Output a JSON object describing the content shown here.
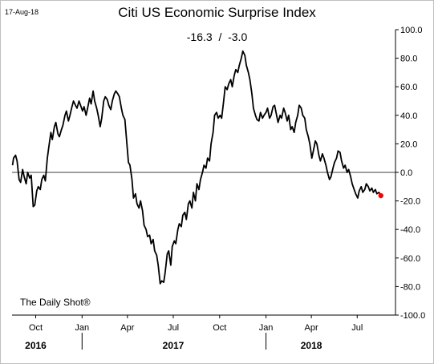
{
  "date_label": "17-Aug-18",
  "title": "Citi US Economic Surprise Index",
  "subtitle": "-16.3  /  -3.0",
  "credit": "The Daily Shot®",
  "chart_data": {
    "type": "line",
    "title": "Citi US Economic Surprise Index",
    "ylim": [
      -100,
      100
    ],
    "y_ticks": [
      "100.0",
      "80.0",
      "60.0",
      "40.0",
      "20.0",
      "0.0",
      "-20.0",
      "-40.0",
      "-60.0",
      "-80.0",
      "-100.0"
    ],
    "y_tick_values": [
      100,
      80,
      60,
      40,
      20,
      0,
      -20,
      -40,
      -60,
      -80,
      -100
    ],
    "x_ticks": [
      {
        "label": "Oct",
        "date": "2016-10-01"
      },
      {
        "label": "Jan",
        "date": "2017-01-01"
      },
      {
        "label": "Apr",
        "date": "2017-04-01"
      },
      {
        "label": "Jul",
        "date": "2017-07-01"
      },
      {
        "label": "Oct",
        "date": "2017-10-01"
      },
      {
        "label": "Jan",
        "date": "2018-01-01"
      },
      {
        "label": "Apr",
        "date": "2018-04-01"
      },
      {
        "label": "Jul",
        "date": "2018-07-01"
      }
    ],
    "year_labels": [
      {
        "label": "2016",
        "date": "2016-10-01"
      },
      {
        "label": "2017",
        "date": "2017-07-01"
      },
      {
        "label": "2018",
        "date": "2018-04-01"
      }
    ],
    "xlim": [
      "2016-08-15",
      "2018-09-15"
    ],
    "zero_line": true,
    "grid": false,
    "line_color": "#000000",
    "last_point_color": "#ff0000",
    "last_point": {
      "date": "2018-08-17",
      "value": -16.3
    },
    "series": [
      {
        "values": [
          [
            "2016-08-16",
            5
          ],
          [
            "2016-08-18",
            10
          ],
          [
            "2016-08-22",
            12
          ],
          [
            "2016-08-25",
            8
          ],
          [
            "2016-08-29",
            -5
          ],
          [
            "2016-09-01",
            -7
          ],
          [
            "2016-09-05",
            2
          ],
          [
            "2016-09-08",
            -3
          ],
          [
            "2016-09-12",
            -8
          ],
          [
            "2016-09-15",
            0
          ],
          [
            "2016-09-19",
            -4
          ],
          [
            "2016-09-22",
            -2
          ],
          [
            "2016-09-26",
            -24
          ],
          [
            "2016-09-29",
            -23
          ],
          [
            "2016-10-03",
            -13
          ],
          [
            "2016-10-06",
            -10
          ],
          [
            "2016-10-10",
            -12
          ],
          [
            "2016-10-13",
            -5
          ],
          [
            "2016-10-17",
            -2
          ],
          [
            "2016-10-20",
            -6
          ],
          [
            "2016-10-24",
            10
          ],
          [
            "2016-10-27",
            18
          ],
          [
            "2016-10-31",
            28
          ],
          [
            "2016-11-03",
            23
          ],
          [
            "2016-11-07",
            32
          ],
          [
            "2016-11-10",
            35
          ],
          [
            "2016-11-14",
            27
          ],
          [
            "2016-11-17",
            25
          ],
          [
            "2016-11-21",
            30
          ],
          [
            "2016-11-24",
            33
          ],
          [
            "2016-11-28",
            40
          ],
          [
            "2016-12-01",
            43
          ],
          [
            "2016-12-05",
            36
          ],
          [
            "2016-12-08",
            40
          ],
          [
            "2016-12-12",
            46
          ],
          [
            "2016-12-15",
            50
          ],
          [
            "2016-12-19",
            47
          ],
          [
            "2016-12-22",
            45
          ],
          [
            "2016-12-26",
            50
          ],
          [
            "2016-12-29",
            47
          ],
          [
            "2017-01-02",
            43
          ],
          [
            "2017-01-05",
            46
          ],
          [
            "2017-01-09",
            40
          ],
          [
            "2017-01-12",
            45
          ],
          [
            "2017-01-16",
            52
          ],
          [
            "2017-01-19",
            48
          ],
          [
            "2017-01-23",
            57
          ],
          [
            "2017-01-26",
            50
          ],
          [
            "2017-01-30",
            45
          ],
          [
            "2017-02-02",
            40
          ],
          [
            "2017-02-06",
            32
          ],
          [
            "2017-02-09",
            38
          ],
          [
            "2017-02-13",
            50
          ],
          [
            "2017-02-16",
            53
          ],
          [
            "2017-02-20",
            51
          ],
          [
            "2017-02-23",
            47
          ],
          [
            "2017-02-27",
            44
          ],
          [
            "2017-03-02",
            50
          ],
          [
            "2017-03-06",
            55
          ],
          [
            "2017-03-09",
            57
          ],
          [
            "2017-03-13",
            55
          ],
          [
            "2017-03-16",
            53
          ],
          [
            "2017-03-20",
            45
          ],
          [
            "2017-03-23",
            40
          ],
          [
            "2017-03-27",
            37
          ],
          [
            "2017-03-30",
            24
          ],
          [
            "2017-04-03",
            7
          ],
          [
            "2017-04-06",
            5
          ],
          [
            "2017-04-10",
            -5
          ],
          [
            "2017-04-13",
            -18
          ],
          [
            "2017-04-17",
            -15
          ],
          [
            "2017-04-20",
            -22
          ],
          [
            "2017-04-24",
            -25
          ],
          [
            "2017-04-27",
            -20
          ],
          [
            "2017-05-01",
            -27
          ],
          [
            "2017-05-04",
            -37
          ],
          [
            "2017-05-08",
            -40
          ],
          [
            "2017-05-11",
            -45
          ],
          [
            "2017-05-15",
            -44
          ],
          [
            "2017-05-18",
            -50
          ],
          [
            "2017-05-22",
            -47
          ],
          [
            "2017-05-25",
            -55
          ],
          [
            "2017-05-29",
            -58
          ],
          [
            "2017-06-01",
            -65
          ],
          [
            "2017-06-05",
            -78
          ],
          [
            "2017-06-08",
            -76
          ],
          [
            "2017-06-12",
            -77
          ],
          [
            "2017-06-15",
            -70
          ],
          [
            "2017-06-19",
            -57
          ],
          [
            "2017-06-22",
            -55
          ],
          [
            "2017-06-26",
            -65
          ],
          [
            "2017-06-29",
            -52
          ],
          [
            "2017-07-03",
            -48
          ],
          [
            "2017-07-06",
            -50
          ],
          [
            "2017-07-10",
            -40
          ],
          [
            "2017-07-13",
            -36
          ],
          [
            "2017-07-17",
            -38
          ],
          [
            "2017-07-20",
            -30
          ],
          [
            "2017-07-24",
            -28
          ],
          [
            "2017-07-27",
            -33
          ],
          [
            "2017-07-31",
            -22
          ],
          [
            "2017-08-03",
            -20
          ],
          [
            "2017-08-07",
            -25
          ],
          [
            "2017-08-10",
            -14
          ],
          [
            "2017-08-14",
            -20
          ],
          [
            "2017-08-17",
            -8
          ],
          [
            "2017-08-21",
            -12
          ],
          [
            "2017-08-24",
            -5
          ],
          [
            "2017-08-28",
            0
          ],
          [
            "2017-08-31",
            5
          ],
          [
            "2017-09-04",
            3
          ],
          [
            "2017-09-07",
            10
          ],
          [
            "2017-09-11",
            8
          ],
          [
            "2017-09-14",
            20
          ],
          [
            "2017-09-18",
            28
          ],
          [
            "2017-09-21",
            40
          ],
          [
            "2017-09-25",
            42
          ],
          [
            "2017-09-28",
            38
          ],
          [
            "2017-10-02",
            40
          ],
          [
            "2017-10-05",
            38
          ],
          [
            "2017-10-09",
            50
          ],
          [
            "2017-10-12",
            60
          ],
          [
            "2017-10-16",
            58
          ],
          [
            "2017-10-19",
            62
          ],
          [
            "2017-10-23",
            65
          ],
          [
            "2017-10-26",
            60
          ],
          [
            "2017-10-30",
            68
          ],
          [
            "2017-11-02",
            72
          ],
          [
            "2017-11-06",
            70
          ],
          [
            "2017-11-09",
            75
          ],
          [
            "2017-11-13",
            80
          ],
          [
            "2017-11-16",
            85
          ],
          [
            "2017-11-20",
            82
          ],
          [
            "2017-11-23",
            75
          ],
          [
            "2017-11-27",
            70
          ],
          [
            "2017-11-30",
            65
          ],
          [
            "2017-12-04",
            55
          ],
          [
            "2017-12-07",
            45
          ],
          [
            "2017-12-11",
            40
          ],
          [
            "2017-12-14",
            37
          ],
          [
            "2017-12-18",
            36
          ],
          [
            "2017-12-21",
            42
          ],
          [
            "2017-12-25",
            38
          ],
          [
            "2017-12-28",
            40
          ],
          [
            "2018-01-01",
            42
          ],
          [
            "2018-01-04",
            45
          ],
          [
            "2018-01-08",
            38
          ],
          [
            "2018-01-11",
            40
          ],
          [
            "2018-01-15",
            46
          ],
          [
            "2018-01-18",
            47
          ],
          [
            "2018-01-22",
            40
          ],
          [
            "2018-01-25",
            35
          ],
          [
            "2018-01-29",
            40
          ],
          [
            "2018-02-01",
            38
          ],
          [
            "2018-02-05",
            45
          ],
          [
            "2018-02-08",
            42
          ],
          [
            "2018-02-12",
            36
          ],
          [
            "2018-02-15",
            40
          ],
          [
            "2018-02-19",
            30
          ],
          [
            "2018-02-22",
            32
          ],
          [
            "2018-02-26",
            28
          ],
          [
            "2018-03-01",
            35
          ],
          [
            "2018-03-05",
            40
          ],
          [
            "2018-03-08",
            47
          ],
          [
            "2018-03-12",
            45
          ],
          [
            "2018-03-15",
            40
          ],
          [
            "2018-03-19",
            38
          ],
          [
            "2018-03-22",
            30
          ],
          [
            "2018-03-26",
            25
          ],
          [
            "2018-03-29",
            20
          ],
          [
            "2018-04-02",
            10
          ],
          [
            "2018-04-05",
            15
          ],
          [
            "2018-04-09",
            22
          ],
          [
            "2018-04-12",
            20
          ],
          [
            "2018-04-16",
            12
          ],
          [
            "2018-04-19",
            8
          ],
          [
            "2018-04-23",
            13
          ],
          [
            "2018-04-26",
            10
          ],
          [
            "2018-04-30",
            5
          ],
          [
            "2018-05-03",
            0
          ],
          [
            "2018-05-07",
            -5
          ],
          [
            "2018-05-10",
            -3
          ],
          [
            "2018-05-14",
            3
          ],
          [
            "2018-05-17",
            7
          ],
          [
            "2018-05-21",
            10
          ],
          [
            "2018-05-24",
            15
          ],
          [
            "2018-05-28",
            14
          ],
          [
            "2018-05-31",
            8
          ],
          [
            "2018-06-04",
            3
          ],
          [
            "2018-06-07",
            5
          ],
          [
            "2018-06-11",
            0
          ],
          [
            "2018-06-14",
            2
          ],
          [
            "2018-06-18",
            -3
          ],
          [
            "2018-06-21",
            -8
          ],
          [
            "2018-06-25",
            -12
          ],
          [
            "2018-06-28",
            -15
          ],
          [
            "2018-07-02",
            -18
          ],
          [
            "2018-07-05",
            -13
          ],
          [
            "2018-07-09",
            -10
          ],
          [
            "2018-07-12",
            -14
          ],
          [
            "2018-07-16",
            -12
          ],
          [
            "2018-07-19",
            -8
          ],
          [
            "2018-07-23",
            -10
          ],
          [
            "2018-07-26",
            -13
          ],
          [
            "2018-07-30",
            -11
          ],
          [
            "2018-08-02",
            -14
          ],
          [
            "2018-08-06",
            -12
          ],
          [
            "2018-08-09",
            -15
          ],
          [
            "2018-08-13",
            -14
          ],
          [
            "2018-08-17",
            -16.3
          ]
        ]
      }
    ]
  }
}
